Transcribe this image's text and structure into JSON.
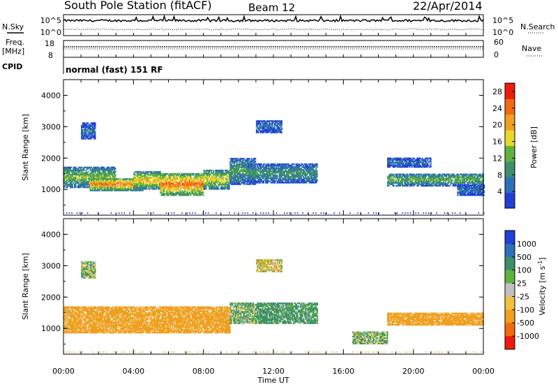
{
  "header": {
    "station_title": "South Pole Station (fitACF)",
    "beam_label": "Beam 12",
    "date_label": "22/Apr/2014"
  },
  "top_panels": {
    "nsky_label": "N.Sky",
    "nsearch_label": "N.Search",
    "noise_ticks_left": [
      "10^5",
      "10^0"
    ],
    "noise_ticks_right": [
      "10^5",
      "10^0"
    ],
    "freq_label": "Freq.",
    "freq_unit": "[MHz]",
    "freq_ticks": [
      "18",
      "8"
    ],
    "nave_label": "Nave",
    "nave_ticks": [
      "60",
      "0"
    ],
    "cpid_label": "CPID",
    "cpid_text": "normal (fast) 151 RF"
  },
  "x_ticks": [
    "00:00",
    "04:00",
    "08:00",
    "12:00",
    "16:00",
    "20:00",
    "00:00"
  ],
  "x_label": "Time UT",
  "chart_data": [
    {
      "type": "heatmap",
      "title": "",
      "xlabel": "Time UT",
      "ylabel": "Slant Range [km]",
      "xlim_hours": [
        0,
        24
      ],
      "ylim_km": [
        180,
        4500
      ],
      "y_ticks": [
        "1000",
        "2000",
        "3000",
        "4000"
      ],
      "colorbar": {
        "label": "Power [dB]",
        "ticks": [
          "4",
          "8",
          "12",
          "16",
          "20",
          "24",
          "28"
        ],
        "range": [
          0,
          30
        ],
        "colors": [
          "#1f3fd8",
          "#2f6fb8",
          "#3c8f6a",
          "#5fb240",
          "#e8d82a",
          "#f0a020",
          "#f26a10",
          "#ee1c0c"
        ]
      },
      "bands": [
        {
          "t0": 0.0,
          "t1": 3.0,
          "r0": 1050,
          "r1": 1700,
          "mean": 14
        },
        {
          "t0": 1.5,
          "t1": 4.5,
          "r0": 950,
          "r1": 1350,
          "mean": 24
        },
        {
          "t0": 4.0,
          "t1": 5.5,
          "r0": 1000,
          "r1": 1550,
          "mean": 20
        },
        {
          "t0": 5.5,
          "t1": 8.0,
          "r0": 800,
          "r1": 1500,
          "mean": 25
        },
        {
          "t0": 8.0,
          "t1": 9.5,
          "r0": 1000,
          "r1": 1600,
          "mean": 18
        },
        {
          "t0": 9.5,
          "t1": 11.0,
          "r0": 1150,
          "r1": 2000,
          "mean": 11
        },
        {
          "t0": 10.5,
          "t1": 14.5,
          "r0": 1200,
          "r1": 1800,
          "mean": 10
        },
        {
          "t0": 18.5,
          "t1": 24.0,
          "r0": 1100,
          "r1": 1500,
          "mean": 13
        },
        {
          "t0": 18.5,
          "t1": 21.0,
          "r0": 1700,
          "r1": 2000,
          "mean": 6
        },
        {
          "t0": 22.5,
          "t1": 24.0,
          "r0": 800,
          "r1": 1150,
          "mean": 6
        },
        {
          "t0": 1.0,
          "t1": 1.8,
          "r0": 2600,
          "r1": 3100,
          "mean": 6
        },
        {
          "t0": 11.0,
          "t1": 12.5,
          "r0": 2800,
          "r1": 3200,
          "mean": 6
        }
      ]
    },
    {
      "type": "heatmap",
      "title": "",
      "xlabel": "Time UT",
      "ylabel": "Slant Range [km]",
      "xlim_hours": [
        0,
        24
      ],
      "ylim_km": [
        180,
        4500
      ],
      "y_ticks": [
        "1000",
        "2000",
        "3000",
        "4000"
      ],
      "colorbar": {
        "label": "Velocity [m s-1]",
        "ticks": [
          "1000",
          "500",
          "100",
          "25",
          "-25",
          "-100",
          "-500",
          "-1000"
        ],
        "range": [
          -1000,
          1000
        ],
        "colors": [
          "#1f3fd8",
          "#2f6fb8",
          "#3c8f6a",
          "#5fb240",
          "#c0c0c0",
          "#f0c040",
          "#f0a020",
          "#f26a10",
          "#ee1c0c"
        ]
      },
      "bands": [
        {
          "t0": 0.0,
          "t1": 9.5,
          "r0": 850,
          "r1": 1700,
          "mean": -250
        },
        {
          "t0": 9.5,
          "t1": 11.0,
          "r0": 1150,
          "r1": 1800,
          "mean": 80
        },
        {
          "t0": 11.0,
          "t1": 14.5,
          "r0": 1150,
          "r1": 1800,
          "mean": 150
        },
        {
          "t0": 16.5,
          "t1": 18.5,
          "r0": 500,
          "r1": 900,
          "mean": 60
        },
        {
          "t0": 18.5,
          "t1": 24.0,
          "r0": 1100,
          "r1": 1500,
          "mean": -250
        },
        {
          "t0": 1.0,
          "t1": 1.8,
          "r0": 2600,
          "r1": 3100,
          "mean": 60
        },
        {
          "t0": 11.0,
          "t1": 12.5,
          "r0": 2800,
          "r1": 3200,
          "mean": -40
        }
      ]
    }
  ]
}
